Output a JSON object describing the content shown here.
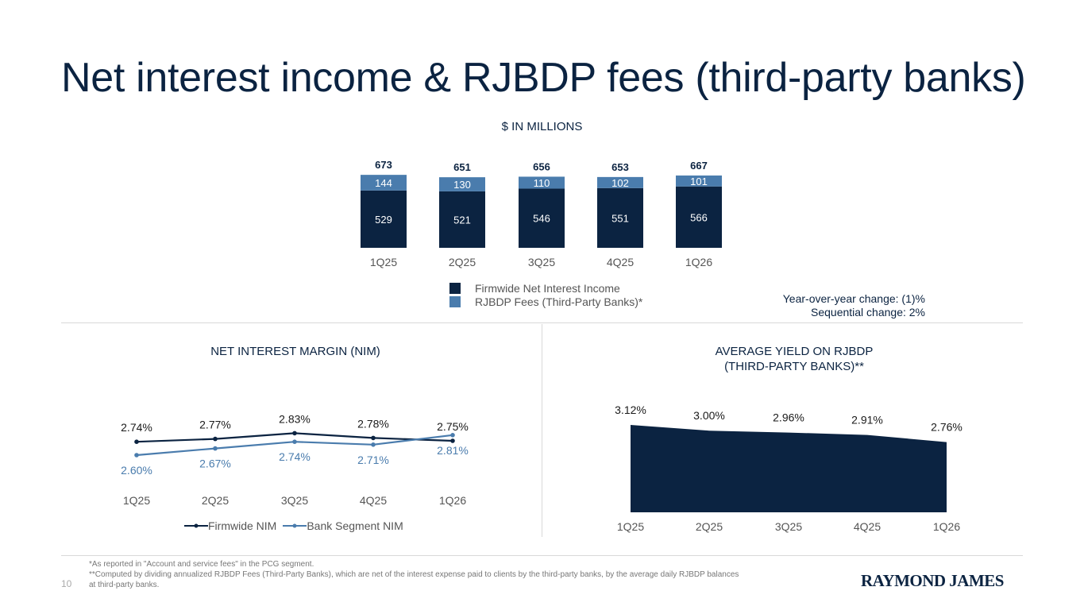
{
  "title": "Net interest income & RJBDP fees (third-party banks)",
  "units_label": "$ IN MILLIONS",
  "colors": {
    "navy": "#0b2341",
    "steel": "#4a7cad",
    "axis_text": "#555555",
    "rule": "#d9d9d9"
  },
  "legend": {
    "nii": "Firmwide Net Interest Income",
    "rjbdp": "RJBDP Fees (Third-Party Banks)*"
  },
  "change": {
    "yoy": "Year-over-year change: (1)%",
    "seq": "Sequential change: 2%"
  },
  "nim_title": "NET INTEREST MARGIN (NIM)",
  "yield_title": [
    "AVERAGE YIELD ON RJBDP",
    "(THIRD-PARTY BANKS)**"
  ],
  "footnotes": [
    "*As reported in \"Account and service fees\" in the PCG segment.",
    "**Computed by dividing annualized RJBDP Fees (Third-Party Banks), which are net of the interest expense paid to clients by the third-party banks, by the average daily RJBDP balances",
    "at third-party banks."
  ],
  "page_number": "10",
  "logo": "RAYMOND JAMES",
  "chart_data": [
    {
      "type": "bar",
      "stacked": true,
      "title": "$ IN MILLIONS",
      "categories": [
        "1Q25",
        "2Q25",
        "3Q25",
        "4Q25",
        "1Q26"
      ],
      "series": [
        {
          "name": "Firmwide Net Interest Income",
          "values": [
            529,
            521,
            546,
            551,
            566
          ]
        },
        {
          "name": "RJBDP Fees (Third-Party Banks)*",
          "values": [
            144,
            130,
            110,
            102,
            101
          ]
        }
      ],
      "totals": [
        673,
        651,
        656,
        653,
        667
      ],
      "labels": {
        "nii": [
          "529",
          "521",
          "546",
          "551",
          "566"
        ],
        "rjbdp": [
          "144",
          "130",
          "110",
          "102",
          "101"
        ],
        "totals": [
          "673",
          "651",
          "656",
          "653",
          "667"
        ]
      }
    },
    {
      "type": "line",
      "title": "NET INTEREST MARGIN (NIM)",
      "categories": [
        "1Q25",
        "2Q25",
        "3Q25",
        "4Q25",
        "1Q26"
      ],
      "series": [
        {
          "name": "Firmwide NIM",
          "values": [
            2.74,
            2.77,
            2.83,
            2.78,
            2.75
          ],
          "labels": [
            "2.74%",
            "2.77%",
            "2.83%",
            "2.78%",
            "2.75%"
          ]
        },
        {
          "name": "Bank Segment NIM",
          "values": [
            2.6,
            2.67,
            2.74,
            2.71,
            2.81
          ],
          "labels": [
            "2.60%",
            "2.67%",
            "2.74%",
            "2.71%",
            "2.81%"
          ]
        }
      ]
    },
    {
      "type": "area",
      "title": "AVERAGE YIELD ON RJBDP (THIRD-PARTY BANKS)**",
      "categories": [
        "1Q25",
        "2Q25",
        "3Q25",
        "4Q25",
        "1Q26"
      ],
      "values": [
        3.12,
        3.0,
        2.96,
        2.91,
        2.76
      ],
      "labels": [
        "3.12%",
        "3.00%",
        "2.96%",
        "2.91%",
        "2.76%"
      ]
    }
  ]
}
